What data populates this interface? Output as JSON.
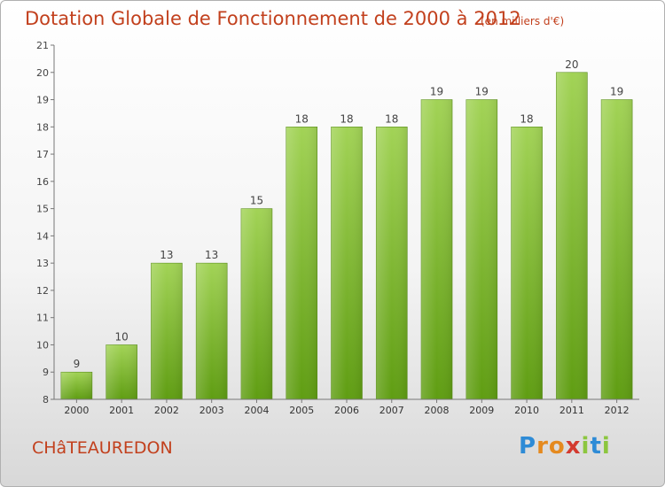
{
  "header": {
    "title": "Dotation Globale de Fonctionnement de 2000 à 2012",
    "subtitle": "(en milliers d'€)"
  },
  "footer": {
    "commune": "CHâTEAUREDON",
    "logo": "Proxiti"
  },
  "colors": {
    "bar_light": "#a2d356",
    "bar_dark": "#5f9d12",
    "title": "#c2401d",
    "axis": "#555555"
  },
  "chart_data": {
    "type": "bar",
    "title": "Dotation Globale de Fonctionnement de 2000 à 2012",
    "subtitle": "(en milliers d'€)",
    "categories": [
      "2000",
      "2001",
      "2002",
      "2003",
      "2004",
      "2005",
      "2006",
      "2007",
      "2008",
      "2009",
      "2010",
      "2011",
      "2012"
    ],
    "values": [
      9,
      10,
      13,
      13,
      15,
      18,
      18,
      18,
      19,
      19,
      18,
      20,
      19
    ],
    "ylim": [
      8,
      21
    ],
    "yticks": [
      8,
      9,
      10,
      11,
      12,
      13,
      14,
      15,
      16,
      17,
      18,
      19,
      20,
      21
    ],
    "grid": false,
    "data_labels": true
  }
}
